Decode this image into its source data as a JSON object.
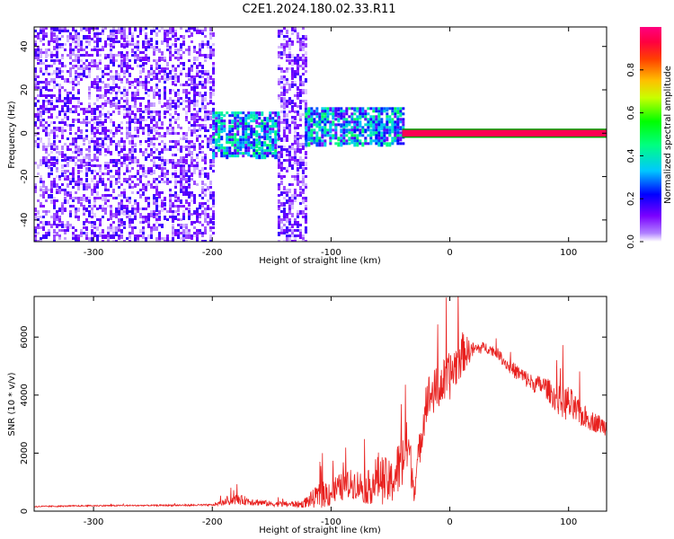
{
  "title": "C2E1.2024.180.02.33.R11",
  "colors": {
    "snr_line": "#e8201e",
    "spectrogram_points": "#7a00ff",
    "spectrogram_background": "#ffffff",
    "spectrogram_line_band": "#d40000"
  },
  "chart_data": [
    {
      "type": "heatmap",
      "xlabel": "Height of straight line (km)",
      "ylabel": "Frequency (Hz)",
      "xlim": [
        -350,
        132
      ],
      "ylim": [
        -50,
        49
      ],
      "x_ticks": [
        -300,
        -200,
        -100,
        0,
        100
      ],
      "x_tick_labels": [
        "-300",
        "-200",
        "-100",
        "0",
        "100"
      ],
      "y_ticks": [
        -40,
        -20,
        0,
        20,
        40
      ],
      "y_tick_labels": [
        "-40",
        "-20",
        "0",
        "20",
        "40"
      ],
      "colorbar": {
        "label": "Normalized spectral amplitude",
        "range": [
          0,
          1
        ],
        "ticks": [
          0.0,
          0.2,
          0.4,
          0.6,
          0.8
        ],
        "tick_labels": [
          "0.0",
          "0.2",
          "0.4",
          "0.6",
          "0.8"
        ],
        "colors": [
          "#ffffff",
          "#7a00ff",
          "#0000ff",
          "#00ffff",
          "#00ff00",
          "#ffff00",
          "#ff8000",
          "#ff0000",
          "#ff0080"
        ]
      },
      "regions": [
        {
          "x_range": [
            -350,
            -200
          ],
          "freq_range": [
            -50,
            49
          ],
          "amplitude": 0.15,
          "description_level": "noise"
        },
        {
          "x_range": [
            -200,
            -145
          ],
          "freq_range": [
            -10,
            10
          ],
          "amplitude": 0.35
        },
        {
          "x_range": [
            -145,
            -122
          ],
          "freq_range": [
            -50,
            49
          ],
          "amplitude": 0.12
        },
        {
          "x_range": [
            -122,
            -40
          ],
          "freq_range": [
            -5,
            12
          ],
          "amplitude": 0.35
        },
        {
          "x_range": [
            -40,
            132
          ],
          "freq_range": [
            -1.5,
            1.5
          ],
          "amplitude": 0.95
        }
      ]
    },
    {
      "type": "line",
      "xlabel": "Height of straight line (km)",
      "ylabel": "SNR (10 * v/v)",
      "xlim": [
        -350,
        132
      ],
      "ylim": [
        0,
        7400
      ],
      "x_ticks": [
        -300,
        -200,
        -100,
        0,
        100
      ],
      "x_tick_labels": [
        "-300",
        "-200",
        "-100",
        "0",
        "100"
      ],
      "y_ticks": [
        0,
        2000,
        4000,
        6000
      ],
      "y_tick_labels": [
        "0",
        "2000",
        "4000",
        "6000"
      ],
      "series": [
        {
          "x": [
            -350,
            -300,
            -250,
            -200,
            -180,
            -150,
            -125,
            -110,
            -100,
            -90,
            -80,
            -70,
            -60,
            -50,
            -40,
            -35,
            -30,
            -20,
            -10,
            0,
            10,
            20,
            30,
            40,
            50,
            60,
            70,
            80,
            90,
            100,
            110,
            120,
            132
          ],
          "values": [
            150,
            180,
            190,
            200,
            350,
            220,
            200,
            400,
            500,
            700,
            800,
            600,
            900,
            700,
            1400,
            2000,
            600,
            3600,
            4000,
            4400,
            5200,
            5500,
            5600,
            5400,
            4900,
            4600,
            4300,
            4200,
            3700,
            3500,
            3200,
            3000,
            2800
          ],
          "noise": [
            40,
            40,
            40,
            60,
            300,
            150,
            200,
            700,
            900,
            800,
            900,
            900,
            1500,
            1300,
            1800,
            1600,
            700,
            1400,
            1300,
            1400,
            1300,
            400,
            300,
            300,
            400,
            500,
            500,
            600,
            800,
            1100,
            700,
            600,
            500
          ]
        }
      ]
    }
  ]
}
